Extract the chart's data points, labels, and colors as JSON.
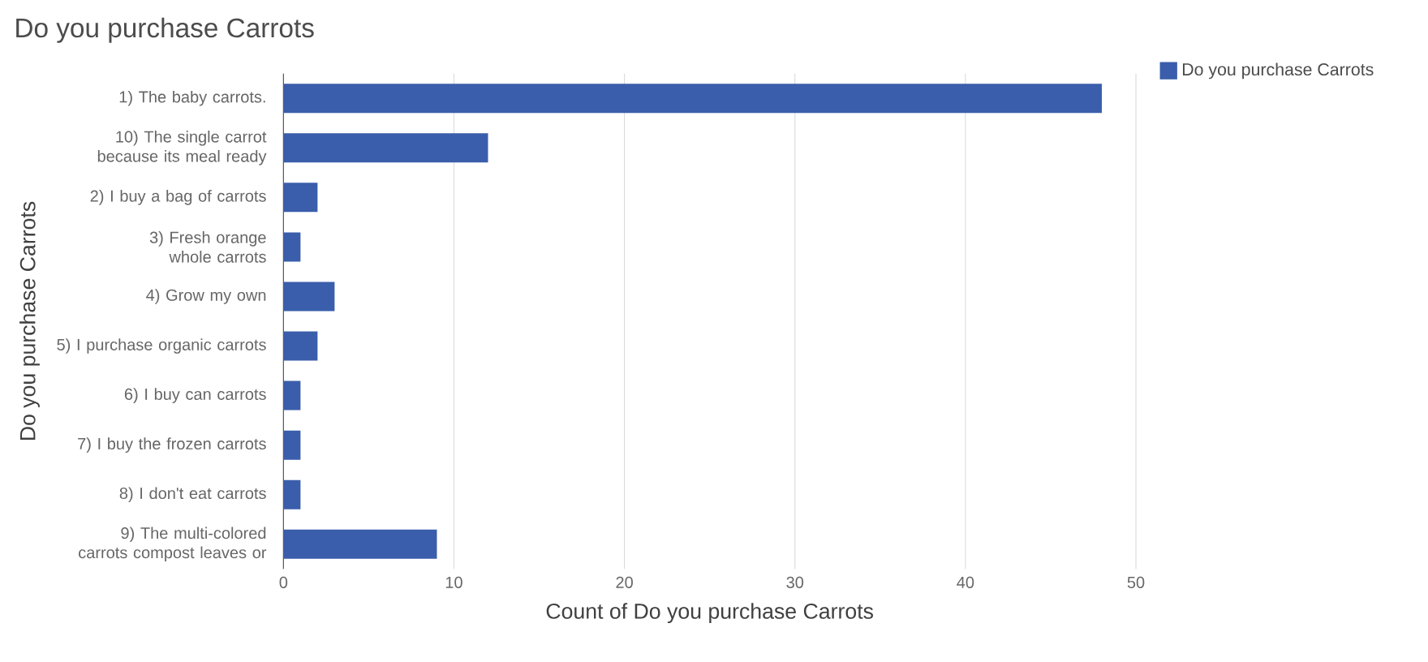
{
  "chart_data": {
    "type": "bar",
    "orientation": "horizontal",
    "title": "Do you purchase Carrots",
    "xlabel": "Count of Do you purchase Carrots",
    "ylabel": "Do you purchase Carrots",
    "categories": [
      "1) The baby carrots.",
      "10) The single carrot because its meal ready",
      "2) I buy a bag of carrots",
      "3) Fresh orange whole carrots",
      "4) Grow my own",
      "5) I purchase organic carrots",
      "6) I buy can carrots",
      "7) I buy the frozen carrots",
      "8) I don't eat carrots",
      "9) The multi-colored carrots compost leaves or"
    ],
    "series": [
      {
        "name": "Do you purchase Carrots",
        "color": "#3a5eab",
        "values": [
          48,
          12,
          2,
          1,
          3,
          2,
          1,
          1,
          1,
          9
        ]
      }
    ],
    "xlim": [
      0,
      50
    ],
    "xticks": [
      0,
      10,
      20,
      30,
      40,
      50
    ],
    "grid": "x",
    "legend": "top right"
  }
}
